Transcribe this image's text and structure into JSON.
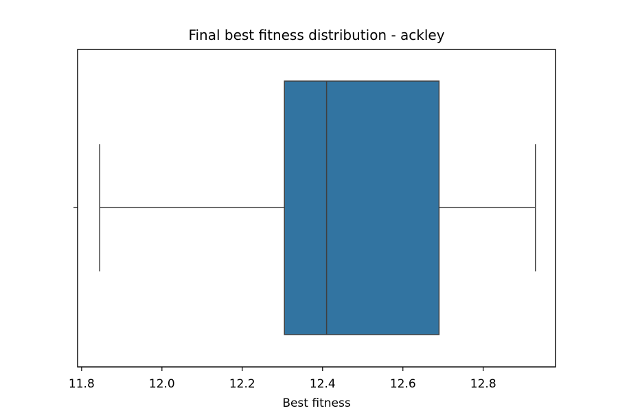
{
  "chart_data": {
    "type": "box",
    "title": "Final best fitness distribution - ackley",
    "xlabel": "Best fitness",
    "ylabel": "",
    "xlim": [
      11.79,
      12.98
    ],
    "xticks": [
      11.8,
      12.0,
      12.2,
      12.4,
      12.6,
      12.8
    ],
    "xtick_labels": [
      "11.8",
      "12.0",
      "12.2",
      "12.4",
      "12.6",
      "12.8"
    ],
    "grid": false,
    "legend": "none",
    "box": {
      "whisker_low": 11.845,
      "q1": 12.305,
      "median": 12.41,
      "q3": 12.69,
      "whisker_high": 12.93
    },
    "colors": {
      "box_fill": "#3274a1",
      "lines": "#3f3f3f",
      "axes": "#000000"
    }
  }
}
